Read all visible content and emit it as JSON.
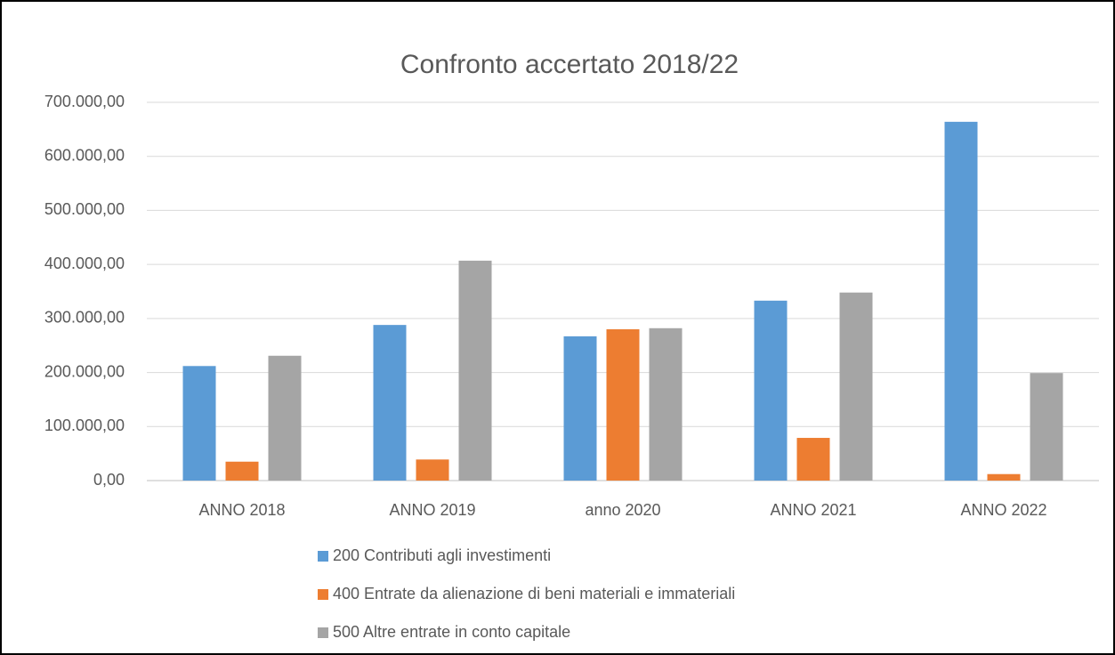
{
  "chart_data": {
    "type": "bar",
    "title": "Confronto accertato 2018/22",
    "categories": [
      "ANNO 2018",
      "ANNO 2019",
      "anno 2020",
      "ANNO 2021",
      "ANNO 2022"
    ],
    "series": [
      {
        "name": "200 Contributi agli investimenti",
        "color": "#5b9bd5",
        "values": [
          212000,
          288000,
          267000,
          333000,
          664000
        ]
      },
      {
        "name": "400 Entrate da alienazione di beni materiali e immateriali",
        "color": "#ed7d31",
        "values": [
          35000,
          39000,
          280000,
          79000,
          12000
        ]
      },
      {
        "name": "500 Altre entrate in conto capitale",
        "color": "#a5a5a5",
        "values": [
          231000,
          407000,
          282000,
          348000,
          199000
        ]
      }
    ],
    "ylim": [
      0,
      700000
    ],
    "yticks": [
      {
        "value": 0,
        "label": "0,00"
      },
      {
        "value": 100000,
        "label": "100.000,00"
      },
      {
        "value": 200000,
        "label": "200.000,00"
      },
      {
        "value": 300000,
        "label": "300.000,00"
      },
      {
        "value": 400000,
        "label": "400.000,00"
      },
      {
        "value": 500000,
        "label": "500.000,00"
      },
      {
        "value": 600000,
        "label": "600.000,00"
      },
      {
        "value": 700000,
        "label": "700.000,00"
      }
    ],
    "grid": true,
    "legend": "bottom"
  }
}
